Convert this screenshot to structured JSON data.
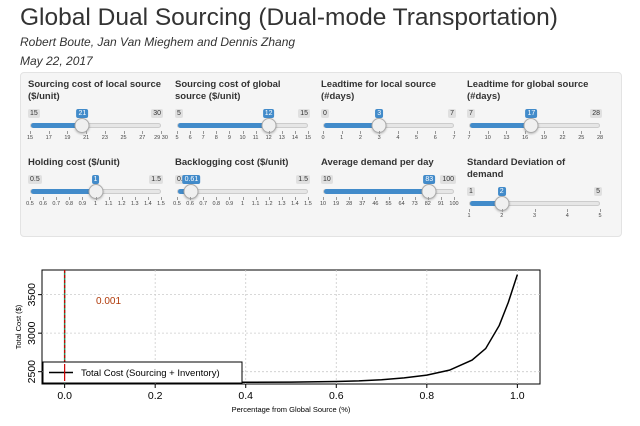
{
  "header": {
    "title": "Global Dual Sourcing (Dual-mode Transportation)",
    "authors": "Robert Boute, Jan Van Mieghem and Dennis Zhang",
    "date": "May 22, 2017"
  },
  "sliders": [
    {
      "label_lines": [
        "Sourcing cost of local source",
        "($/unit)"
      ],
      "min": 15,
      "max": 30,
      "value": 21,
      "tick_labels": [
        "15",
        "17",
        "19",
        "21",
        "23",
        "25",
        "27",
        "29 30"
      ]
    },
    {
      "label_lines": [
        "Sourcing cost of global",
        "source ($/unit)"
      ],
      "min": 5,
      "max": 15,
      "value": 12,
      "tick_labels": [
        "5",
        "6",
        "7",
        "8",
        "9",
        "10",
        "11",
        "12",
        "13",
        "14",
        "15"
      ]
    },
    {
      "label_lines": [
        "Leadtime for local source",
        "(#days)"
      ],
      "min": 0,
      "max": 7,
      "value": 3,
      "tick_labels": [
        "0",
        "1",
        "2",
        "3",
        "4",
        "5",
        "6",
        "7"
      ]
    },
    {
      "label_lines": [
        "Leadtime for global source",
        "(#days)"
      ],
      "min": 7,
      "max": 28,
      "value": 17,
      "tick_labels": [
        "7",
        "10",
        "13",
        "16",
        "19",
        "22",
        "25",
        "28"
      ]
    },
    {
      "label_lines": [
        "Holding cost ($/unit)"
      ],
      "min": 0.5,
      "max": 1.5,
      "value": 1,
      "tick_labels": [
        "0.5",
        "0.6",
        "0.7",
        "0.8",
        "0.9",
        "1",
        "1.1",
        "1.2",
        "1.3",
        "1.4",
        "1.5"
      ]
    },
    {
      "label_lines": [
        "Backlogging cost ($/unit)"
      ],
      "min": 0.5,
      "max": 1.5,
      "value": 0.61,
      "tick_labels": [
        "0.5",
        "0.6",
        "0.7",
        "0.8",
        "0.9",
        "1",
        "1.1",
        "1.2",
        "1.3",
        "1.4",
        "1.5"
      ]
    },
    {
      "label_lines": [
        "Average demand per day"
      ],
      "min": 10,
      "max": 100,
      "value": 83,
      "tick_labels": [
        "10",
        "19",
        "28",
        "37",
        "46",
        "55",
        "64",
        "73",
        "82",
        "91",
        "100"
      ]
    },
    {
      "label_lines": [
        "Standard Deviation of",
        "demand"
      ],
      "min": 1,
      "max": 5,
      "value": 2,
      "tick_labels": [
        "1",
        "2",
        "3",
        "4",
        "5"
      ]
    }
  ],
  "chart_data": {
    "type": "line",
    "xlabel": "Percentage from Global Source (%)",
    "ylabel": "Total Cost ($)",
    "xlim": [
      -0.05,
      1.05
    ],
    "ylim": [
      2340,
      3820
    ],
    "x_ticks": [
      "0.0",
      "0.2",
      "0.4",
      "0.6",
      "0.8",
      "1.0"
    ],
    "y_ticks": [
      "2500",
      "3000",
      "3500"
    ],
    "annotation": "0.001",
    "optimum_x": 0.0,
    "grid": true,
    "legend_position": "bottom-left",
    "series": [
      {
        "name": "Total Cost (Sourcing + Inventory)",
        "x": [
          0.0,
          0.1,
          0.2,
          0.3,
          0.4,
          0.5,
          0.6,
          0.65,
          0.7,
          0.75,
          0.8,
          0.85,
          0.9,
          0.93,
          0.96,
          0.98,
          1.0
        ],
        "y": [
          2360,
          2360,
          2360,
          2360,
          2362,
          2365,
          2372,
          2380,
          2395,
          2420,
          2455,
          2520,
          2650,
          2800,
          3100,
          3400,
          3760
        ]
      }
    ],
    "colors": {
      "line": "#000000",
      "vline_red": "#cc0000",
      "vline_green": "#2e8b57",
      "annotation": "#b03a0a",
      "grid": "#cccccc"
    }
  }
}
